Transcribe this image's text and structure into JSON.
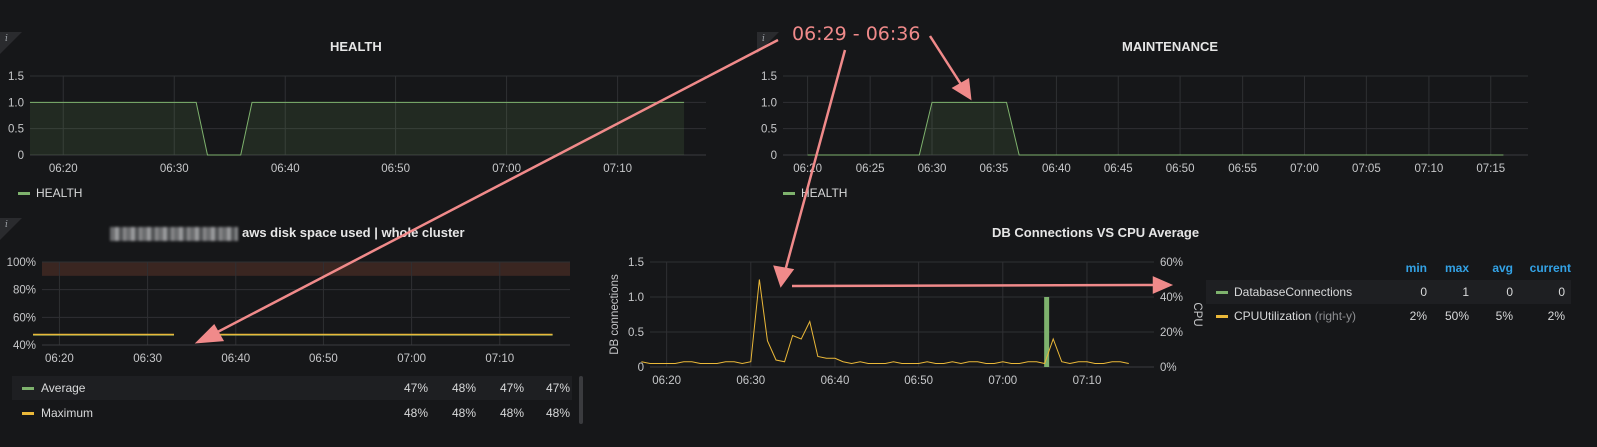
{
  "colors": {
    "green": "#7eb26d",
    "yellow": "#eab839",
    "annotation": "#f08a8a",
    "header_blue": "#33a2e5",
    "threshold_band": "#3a2621"
  },
  "info_glyph": "i",
  "annotation": {
    "text": "06:29 - 06:36"
  },
  "panels": {
    "health": {
      "title": "HEALTH",
      "legend": [
        {
          "label": "HEALTH",
          "color": "#7eb26d"
        }
      ]
    },
    "maintenance": {
      "title": "MAINTENANCE",
      "legend": [
        {
          "label": "HEALTH",
          "color": "#7eb26d"
        }
      ]
    },
    "disk": {
      "title": "aws disk space used | whole cluster",
      "legend_rows": [
        {
          "label": "Average",
          "color": "#7eb26d",
          "values": [
            "47%",
            "48%",
            "47%",
            "47%"
          ]
        },
        {
          "label": "Maximum",
          "color": "#eab839",
          "values": [
            "48%",
            "48%",
            "48%",
            "48%"
          ]
        }
      ]
    },
    "db": {
      "title": "DB Connections VS CPU Average",
      "legend_headers": [
        "min",
        "max",
        "avg",
        "current"
      ],
      "legend_rows": [
        {
          "label": "DatabaseConnections",
          "suffix": "",
          "color": "#7eb26d",
          "values": [
            "0",
            "1",
            "0",
            "0"
          ]
        },
        {
          "label": "CPUUtilization",
          "suffix": "(right-y)",
          "color": "#eab839",
          "values": [
            "2%",
            "50%",
            "5%",
            "2%"
          ]
        }
      ]
    }
  },
  "chart_data": [
    {
      "id": "health",
      "type": "line",
      "title": "HEALTH",
      "xlim": [
        6.283,
        7.3
      ],
      "ylim": [
        0,
        1.5
      ],
      "yticks": [
        "0",
        "0.5",
        "1.0",
        "1.5"
      ],
      "ytick_values": [
        0,
        0.5,
        1.0,
        1.5
      ],
      "xticks": [
        "06:20",
        "06:30",
        "06:40",
        "06:50",
        "07:00",
        "07:10"
      ],
      "xtick_values": [
        6.333,
        6.5,
        6.667,
        6.833,
        7.0,
        7.167
      ],
      "series": [
        {
          "name": "HEALTH",
          "color": "#7eb26d",
          "fill": true,
          "x": [
            6.283,
            6.533,
            6.55,
            6.6,
            6.617,
            7.267
          ],
          "y": [
            1,
            1,
            0,
            0,
            1,
            1
          ]
        }
      ]
    },
    {
      "id": "maintenance",
      "type": "line",
      "title": "MAINTENANCE",
      "xlim": [
        6.3,
        7.3
      ],
      "ylim": [
        0,
        1.5
      ],
      "yticks": [
        "0",
        "0.5",
        "1.0",
        "1.5"
      ],
      "ytick_values": [
        0,
        0.5,
        1.0,
        1.5
      ],
      "xticks": [
        "06:20",
        "06:25",
        "06:30",
        "06:35",
        "06:40",
        "06:45",
        "06:50",
        "06:55",
        "07:00",
        "07:05",
        "07:10",
        "07:15"
      ],
      "xtick_values": [
        6.333,
        6.417,
        6.5,
        6.583,
        6.667,
        6.75,
        6.833,
        6.917,
        7.0,
        7.083,
        7.167,
        7.25
      ],
      "series": [
        {
          "name": "HEALTH",
          "color": "#7eb26d",
          "fill": true,
          "x": [
            6.333,
            6.483,
            6.5,
            6.6,
            6.617,
            7.267
          ],
          "y": [
            0,
            0,
            1,
            1,
            0,
            0
          ]
        }
      ]
    },
    {
      "id": "disk",
      "type": "line",
      "title": "aws disk space used | whole cluster",
      "xlim": [
        6.3,
        7.3
      ],
      "ylim": [
        40,
        100
      ],
      "yticks": [
        "40%",
        "60%",
        "80%",
        "100%"
      ],
      "ytick_values": [
        40,
        60,
        80,
        100
      ],
      "xticks": [
        "06:20",
        "06:30",
        "06:40",
        "06:50",
        "07:00",
        "07:10"
      ],
      "xtick_values": [
        6.333,
        6.5,
        6.667,
        6.833,
        7.0,
        7.167
      ],
      "threshold": {
        "from": 90,
        "to": 100
      },
      "series": [
        {
          "name": "Average",
          "color": "#7eb26d",
          "segments": [
            [
              [
                6.283,
                47.3
              ],
              [
                6.55,
                47.3
              ]
            ],
            [
              [
                6.633,
                47.3
              ],
              [
                7.267,
                47.3
              ]
            ]
          ]
        },
        {
          "name": "Maximum",
          "color": "#eab839",
          "segments": [
            [
              [
                6.283,
                47.6
              ],
              [
                6.55,
                47.6
              ]
            ],
            [
              [
                6.633,
                47.6
              ],
              [
                7.267,
                47.6
              ]
            ]
          ]
        }
      ]
    },
    {
      "id": "db",
      "type": "line",
      "title": "DB Connections VS CPU Average",
      "ylabel": "DB connections",
      "y2label": "CPU",
      "xlim": [
        6.3,
        7.3
      ],
      "ylim": [
        0,
        1.5
      ],
      "y2lim": [
        0,
        60
      ],
      "yticks": [
        "0",
        "0.5",
        "1.0",
        "1.5"
      ],
      "ytick_values": [
        0,
        0.5,
        1.0,
        1.5
      ],
      "y2ticks": [
        "0%",
        "20%",
        "40%",
        "60%"
      ],
      "y2tick_values": [
        0,
        20,
        40,
        60
      ],
      "xticks": [
        "06:20",
        "06:30",
        "06:40",
        "06:50",
        "07:00",
        "07:10"
      ],
      "xtick_values": [
        6.333,
        6.5,
        6.667,
        6.833,
        7.0,
        7.167
      ],
      "series": [
        {
          "name": "DatabaseConnections",
          "color": "#7eb26d",
          "type": "bar",
          "x": [
            7.087
          ],
          "y": [
            1
          ]
        },
        {
          "name": "CPUUtilization (right-y)",
          "color": "#eab839",
          "axis": "right",
          "x": [
            6.283,
            6.3,
            6.317,
            6.333,
            6.35,
            6.367,
            6.383,
            6.4,
            6.417,
            6.433,
            6.45,
            6.467,
            6.483,
            6.5,
            6.517,
            6.533,
            6.55,
            6.567,
            6.583,
            6.6,
            6.617,
            6.633,
            6.65,
            6.667,
            6.683,
            6.7,
            6.717,
            6.733,
            6.75,
            6.767,
            6.783,
            6.8,
            6.817,
            6.833,
            6.85,
            6.867,
            6.883,
            6.9,
            6.917,
            6.933,
            6.95,
            6.967,
            6.983,
            7.0,
            7.017,
            7.033,
            7.05,
            7.067,
            7.083,
            7.1,
            7.117,
            7.133,
            7.15,
            7.167,
            7.183,
            7.2,
            7.217,
            7.233,
            7.25
          ],
          "y": [
            3,
            2,
            2,
            2,
            2,
            3,
            3,
            2,
            2,
            2,
            3,
            3,
            2,
            3,
            50,
            15,
            4,
            3,
            18,
            16,
            26,
            6,
            5,
            5,
            3,
            2,
            3,
            2,
            2,
            2,
            3,
            2,
            2,
            2,
            3,
            2,
            2,
            3,
            2,
            3,
            3,
            2,
            2,
            3,
            2,
            2,
            3,
            3,
            2,
            16,
            3,
            2,
            3,
            3,
            2,
            2,
            3,
            3,
            2
          ]
        }
      ]
    }
  ]
}
